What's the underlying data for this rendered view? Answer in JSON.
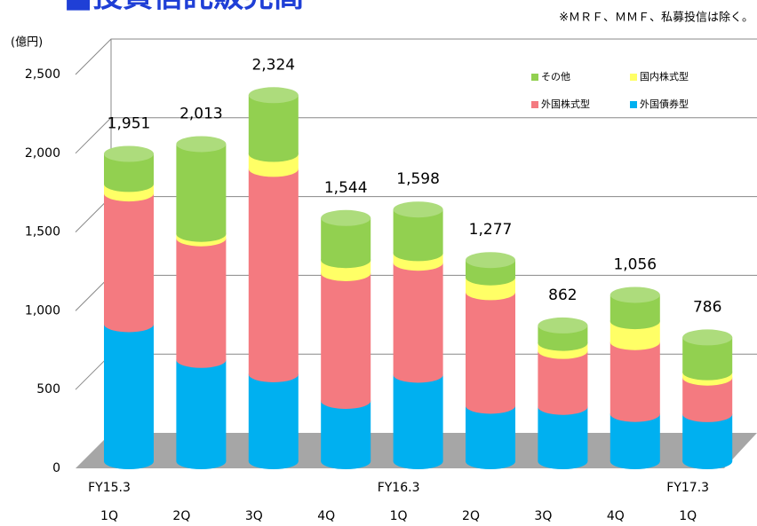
{
  "chart_data": {
    "type": "bar3d_stacked",
    "title": "■投資信託販売高",
    "note": "※ＭＲＦ、ＭＭＦ、私募投信は除く。",
    "unit_label": "(億円)",
    "categories": [
      "1Q",
      "2Q",
      "3Q",
      "4Q",
      "1Q",
      "2Q",
      "3Q",
      "4Q",
      "1Q"
    ],
    "fy_labels": [
      "FY15.3",
      null,
      null,
      null,
      "FY16.3",
      null,
      null,
      null,
      "FY17.3"
    ],
    "series": [
      {
        "name": "外国債券型",
        "color": "#00b0f0",
        "values": [
          870,
          643,
          552,
          383,
          549,
          352,
          345,
          300,
          299
        ]
      },
      {
        "name": "外国株式型",
        "color": "#f47a80",
        "values": [
          830,
          772,
          1304,
          811,
          711,
          721,
          355,
          456,
          232
        ]
      },
      {
        "name": "国内株式型",
        "color": "#ffff66",
        "values": [
          60,
          28,
          95,
          83,
          61,
          94,
          51,
          133,
          34
        ]
      },
      {
        "name": "その他",
        "color": "#92d050",
        "values": [
          191,
          570,
          373,
          267,
          277,
          110,
          111,
          167,
          221
        ]
      }
    ],
    "totals": {
      "values": [
        1951,
        2013,
        2324,
        1544,
        1598,
        1277,
        862,
        1056,
        786
      ],
      "value_labels": [
        "1,951",
        "2,013",
        "2,324",
        "1,544",
        "1,598",
        "1,277",
        "862",
        "1,056",
        "786"
      ]
    },
    "ylim": [
      0,
      2500
    ],
    "yticks": [
      0,
      500,
      {
        "value": 1000,
        "label": "1,000"
      },
      {
        "value": 1500,
        "label": "1,500"
      },
      {
        "value": 2000,
        "label": "2,000"
      },
      {
        "value": 2500,
        "label": "2,500"
      }
    ],
    "grid": true
  }
}
